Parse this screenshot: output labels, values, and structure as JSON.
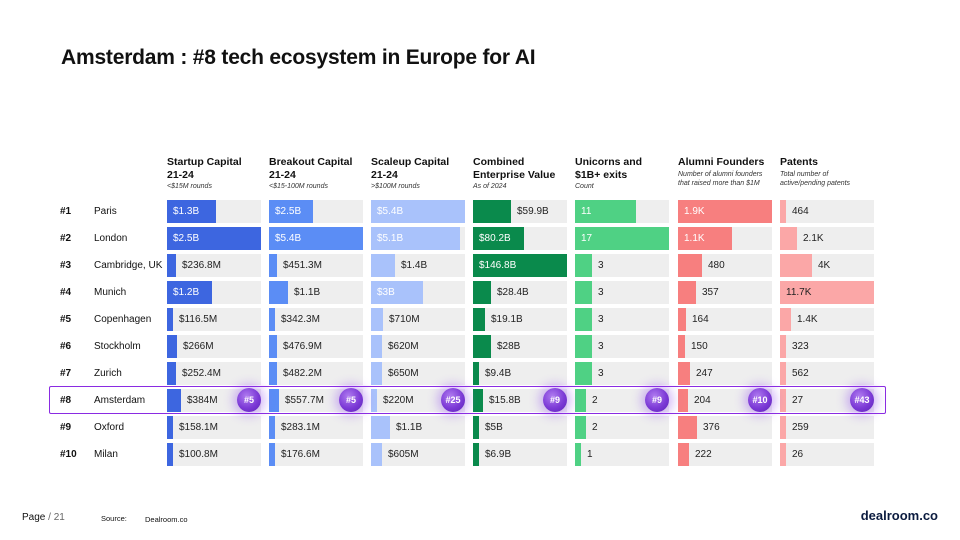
{
  "title": "Amsterdam : #8 tech ecosystem in Europe for AI",
  "chart_data": {
    "type": "table",
    "title": "Amsterdam : #8 tech ecosystem in Europe for AI",
    "rows": [
      {
        "rank": "#1",
        "city": "Paris"
      },
      {
        "rank": "#2",
        "city": "London"
      },
      {
        "rank": "#3",
        "city": "Cambridge, UK"
      },
      {
        "rank": "#4",
        "city": "Munich"
      },
      {
        "rank": "#5",
        "city": "Copenhagen"
      },
      {
        "rank": "#6",
        "city": "Stockholm"
      },
      {
        "rank": "#7",
        "city": "Zurich"
      },
      {
        "rank": "#8",
        "city": "Amsterdam"
      },
      {
        "rank": "#9",
        "city": "Oxford"
      },
      {
        "rank": "#10",
        "city": "Milan"
      }
    ],
    "columns": [
      {
        "title": "Startup Capital\n21-24",
        "subtitle": "<$15M rounds",
        "color": "#3d66e0",
        "values": [
          1.3,
          2.5,
          0.2368,
          1.2,
          0.1165,
          0.266,
          0.2524,
          0.384,
          0.1581,
          0.1008
        ],
        "labels": [
          "$1.3B",
          "$2.5B",
          "$236.8M",
          "$1.2B",
          "$116.5M",
          "$266M",
          "$252.4M",
          "$384M",
          "$158.1M",
          "$100.8M"
        ],
        "max": 2.5,
        "highlight_rank": "#5"
      },
      {
        "title": "Breakout Capital\n21-24",
        "subtitle": "<$15-100M rounds",
        "color": "#5b8df5",
        "values": [
          2.5,
          5.4,
          0.4513,
          1.1,
          0.3423,
          0.4769,
          0.4822,
          0.5577,
          0.2831,
          0.1766
        ],
        "labels": [
          "$2.5B",
          "$5.4B",
          "$451.3M",
          "$1.1B",
          "$342.3M",
          "$476.9M",
          "$482.2M",
          "$557.7M",
          "$283.1M",
          "$176.6M"
        ],
        "max": 5.4,
        "highlight_rank": "#5"
      },
      {
        "title": "Scaleup Capital\n21-24",
        "subtitle": ">$100M rounds",
        "color": "#a9c2fb",
        "values": [
          5.4,
          5.1,
          1.4,
          3.0,
          0.71,
          0.62,
          0.65,
          0.22,
          1.1,
          0.605
        ],
        "labels": [
          "$5.4B",
          "$5.1B",
          "$1.4B",
          "$3B",
          "$710M",
          "$620M",
          "$650M",
          "$220M",
          "$1.1B",
          "$605M"
        ],
        "max": 5.4,
        "highlight_rank": "#25"
      },
      {
        "title": "Combined\nEnterprise Value",
        "subtitle": "As of 2024",
        "color": "#0a8a4c",
        "values": [
          59.9,
          80.2,
          146.8,
          28.4,
          19.1,
          28.0,
          9.4,
          15.8,
          5.0,
          6.9
        ],
        "labels": [
          "$59.9B",
          "$80.2B",
          "$146.8B",
          "$28.4B",
          "$19.1B",
          "$28B",
          "$9.4B",
          "$15.8B",
          "$5B",
          "$6.9B"
        ],
        "max": 146.8,
        "highlight_rank": "#9"
      },
      {
        "title": "Unicorns and\n$1B+ exits",
        "subtitle": "Count",
        "color": "#4fd184",
        "values": [
          11,
          17,
          3,
          3,
          3,
          3,
          3,
          2,
          2,
          1
        ],
        "labels": [
          "11",
          "17",
          "3",
          "3",
          "3",
          "3",
          "3",
          "2",
          "2",
          "1"
        ],
        "max": 17,
        "highlight_rank": "#9"
      },
      {
        "title": "Alumni Founders",
        "subtitle": "Number of alumni founders\nthat raised more than $1M",
        "color": "#f77f7f",
        "values": [
          1900,
          1100,
          480,
          357,
          164,
          150,
          247,
          204,
          376,
          222
        ],
        "labels": [
          "1.9K",
          "1.1K",
          "480",
          "357",
          "164",
          "150",
          "247",
          "204",
          "376",
          "222"
        ],
        "max": 1900,
        "highlight_rank": "#10"
      },
      {
        "title": "Patents",
        "subtitle": "Total number of\nactive/pending patents",
        "color": "#fba7a7",
        "values": [
          464,
          2100,
          4000,
          11700,
          1400,
          323,
          562,
          27,
          259,
          26
        ],
        "labels": [
          "464",
          "2.1K",
          "4K",
          "11.7K",
          "1.4K",
          "323",
          "562",
          "27",
          "259",
          "26"
        ],
        "max": 11700,
        "highlight_rank": "#43"
      }
    ],
    "highlighted_row": "#8"
  },
  "footer": {
    "page_label": "Page",
    "page_total": "/ 21",
    "source_label": "Source:",
    "source": "Dealroom.co",
    "logo": "dealroom.co"
  }
}
